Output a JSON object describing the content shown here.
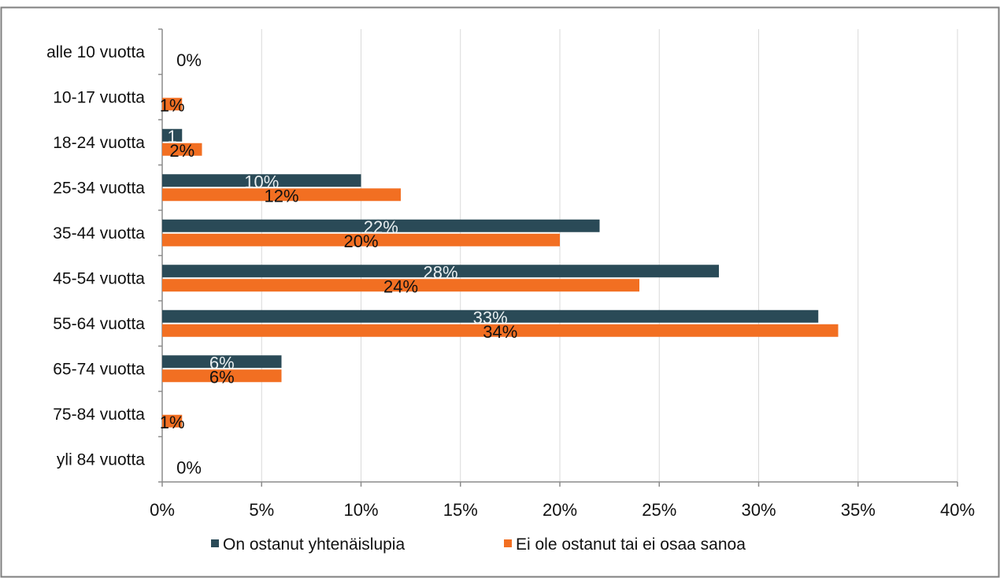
{
  "chart_data": {
    "type": "bar",
    "orientation": "horizontal",
    "categories": [
      "alle 10 vuotta",
      "10-17 vuotta",
      "18-24 vuotta",
      "25-34 vuotta",
      "35-44 vuotta",
      "45-54 vuotta",
      "55-64 vuotta",
      "65-74 vuotta",
      "75-84 vuotta",
      "yli 84 vuotta"
    ],
    "series": [
      {
        "name": "On ostanut yhtenäislupia",
        "color": "#2a4a57",
        "label_color": "#e8eef0",
        "values": [
          0,
          0,
          1,
          10,
          22,
          28,
          33,
          6,
          0,
          0
        ],
        "labels": [
          "",
          "",
          "1",
          "10%",
          "22%",
          "28%",
          "33%",
          "6%",
          "",
          ""
        ]
      },
      {
        "name": "Ei ole ostanut tai ei osaa sanoa",
        "color": "#f26f22",
        "label_color": "#111111",
        "values": [
          0,
          1,
          2,
          12,
          20,
          24,
          34,
          6,
          1,
          0
        ],
        "labels": [
          "0%",
          "1%",
          "2%",
          "12%",
          "20%",
          "24%",
          "34%",
          "6%",
          "1%",
          "0%"
        ]
      }
    ],
    "xlim": [
      0,
      40
    ],
    "xticks": [
      "0%",
      "5%",
      "10%",
      "15%",
      "20%",
      "25%",
      "30%",
      "35%",
      "40%"
    ],
    "grid": true,
    "legend_position": "bottom"
  }
}
